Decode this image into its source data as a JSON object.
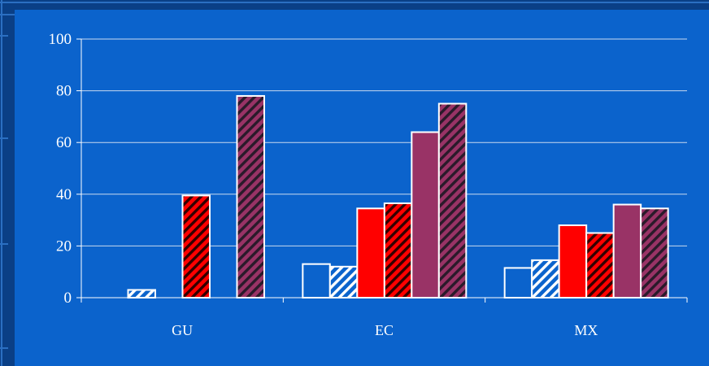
{
  "colors": {
    "frame": "#0a3f86",
    "panel": "#0b63cc",
    "grid": "#c9d9ef",
    "axis": "#ffffff",
    "bar_outline": "#ffffff",
    "red": "#ff0000",
    "maroon": "#993366",
    "panel_blue": "#0b63cc"
  },
  "chart_data": {
    "type": "bar",
    "categories": [
      "GU",
      "EC",
      "MX"
    ],
    "y_ticks": [
      "0",
      "20",
      "40",
      "60",
      "80",
      "100"
    ],
    "ylim": [
      0,
      100
    ],
    "grid": true,
    "legend": "none",
    "series": [
      {
        "fill": "panel_blue",
        "pattern": "solid",
        "values": [
          null,
          13,
          11.5
        ]
      },
      {
        "fill": "panel_blue",
        "pattern": "hatch",
        "values": [
          3,
          12,
          14.5
        ]
      },
      {
        "fill": "red",
        "pattern": "solid",
        "values": [
          null,
          34.5,
          28
        ]
      },
      {
        "fill": "red",
        "pattern": "hatch",
        "values": [
          39.5,
          36.5,
          25
        ]
      },
      {
        "fill": "maroon",
        "pattern": "solid",
        "values": [
          null,
          64,
          36
        ]
      },
      {
        "fill": "maroon",
        "pattern": "hatch",
        "values": [
          78,
          75,
          34.5
        ]
      }
    ]
  }
}
